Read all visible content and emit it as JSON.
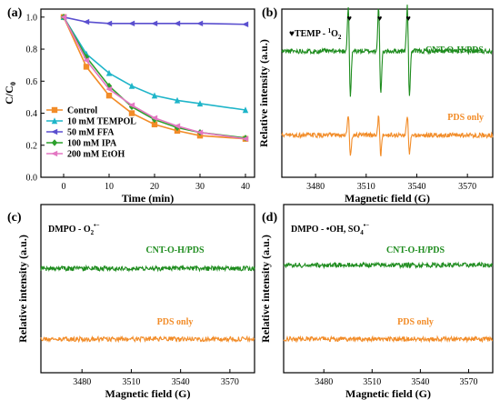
{
  "chart_data": [
    {
      "panel": "(a)",
      "type": "line",
      "xlabel": "Time (min)",
      "ylabel": "C/C",
      "ylabel_sub": "0",
      "xlim": [
        -5,
        42
      ],
      "ylim": [
        0.0,
        1.05
      ],
      "xticks": [
        0,
        10,
        20,
        30,
        40
      ],
      "yticks": [
        0.0,
        0.2,
        0.4,
        0.6,
        0.8,
        1.0
      ],
      "ytick_labels": [
        "0.0",
        "0.2",
        "0.4",
        "0.6",
        "0.8",
        "1.0"
      ],
      "legend_position": "bottom-left",
      "x": [
        0,
        5,
        10,
        15,
        20,
        25,
        30,
        40
      ],
      "series": [
        {
          "name": "Control",
          "color": "#f28c28",
          "marker": "square",
          "values": [
            1.0,
            0.69,
            0.51,
            0.4,
            0.33,
            0.29,
            0.26,
            0.24
          ]
        },
        {
          "name": "10 mM TEMPOL",
          "color": "#1fb5c9",
          "marker": "triangle",
          "values": [
            1.0,
            0.77,
            0.65,
            0.57,
            0.51,
            0.48,
            0.46,
            0.42
          ]
        },
        {
          "name": "50 mM FFA",
          "color": "#5a4fcf",
          "marker": "triangle-left",
          "values": [
            1.0,
            0.97,
            0.96,
            0.96,
            0.96,
            0.96,
            0.96,
            0.955
          ]
        },
        {
          "name": "100 mM IPA",
          "color": "#2ca02c",
          "marker": "diamond",
          "values": [
            1.0,
            0.75,
            0.57,
            0.44,
            0.36,
            0.31,
            0.28,
            0.245
          ]
        },
        {
          "name": "200 mM EtOH",
          "color": "#e377c2",
          "marker": "triangle-left",
          "values": [
            1.0,
            0.73,
            0.55,
            0.45,
            0.37,
            0.32,
            0.28,
            0.24
          ]
        }
      ]
    },
    {
      "panel": "(b)",
      "type": "line",
      "xlabel": "Magnetic field (G)",
      "ylabel": "Relative intensity (a.u.)",
      "xlim": [
        3460,
        3585
      ],
      "xticks": [
        3480,
        3510,
        3540,
        3570
      ],
      "annotation": "TEMP - ",
      "annotation_species": "O",
      "annotation_sup": "1",
      "annotation_sub": "2",
      "peak_marker_glyph": "♥",
      "peak_positions": [
        3500,
        3518,
        3535
      ],
      "series": [
        {
          "name": "CNT-O-H/PDS",
          "color": "#1e8c1e",
          "baseline": 0.75,
          "amplitude": 0.32
        },
        {
          "name": "PDS only",
          "color": "#f28c28",
          "baseline": 0.25,
          "amplitude": 0.14
        }
      ]
    },
    {
      "panel": "(c)",
      "type": "line",
      "xlabel": "Magnetic field (G)",
      "ylabel": "Relative intensity (a.u.)",
      "xlim": [
        3455,
        3585
      ],
      "xticks": [
        3480,
        3510,
        3540,
        3570
      ],
      "annotation": "DMPO - O",
      "annotation_sub": "2",
      "annotation_sup": "•−",
      "series": [
        {
          "name": "CNT-O-H/PDS",
          "color": "#1e8c1e",
          "baseline": 0.62
        },
        {
          "name": "PDS only",
          "color": "#f28c28",
          "baseline": 0.2
        }
      ]
    },
    {
      "panel": "(d)",
      "type": "line",
      "xlabel": "Magnetic field (G)",
      "ylabel": "Relative intensity (a.u.)",
      "xlim": [
        3455,
        3585
      ],
      "xticks": [
        3480,
        3510,
        3540,
        3570
      ],
      "annotation": "DMPO - •OH, SO",
      "annotation_sub": "4",
      "annotation_sup": "•−",
      "series": [
        {
          "name": "CNT-O-H/PDS",
          "color": "#1e8c1e",
          "baseline": 0.64
        },
        {
          "name": "PDS only",
          "color": "#f28c28",
          "baseline": 0.2
        }
      ]
    }
  ]
}
